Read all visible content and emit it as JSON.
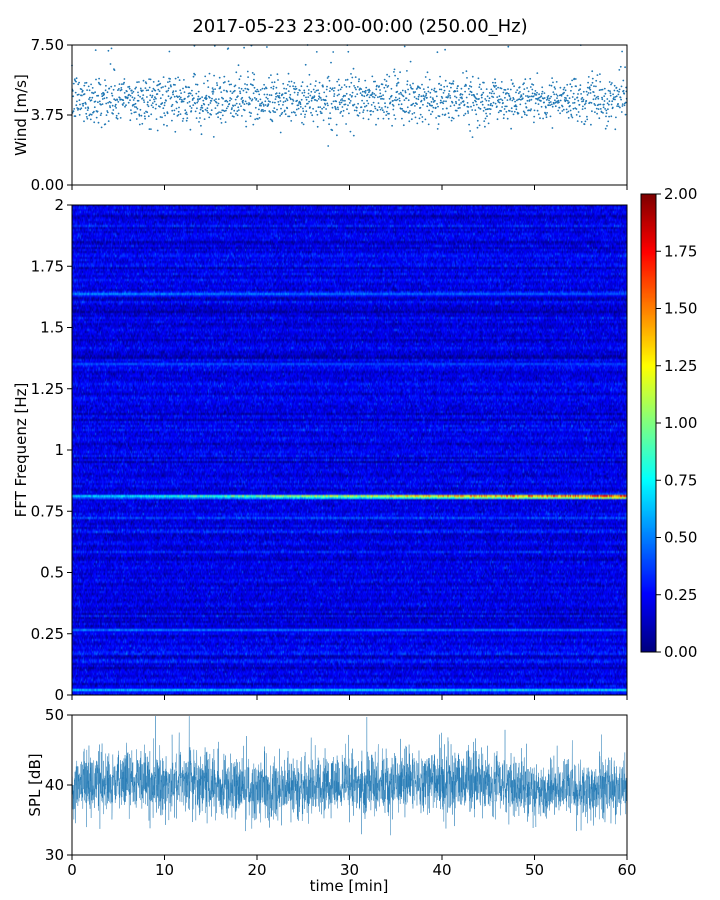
{
  "title": "2017-05-23 23:00-00:00 (250.00_Hz)",
  "colors": {
    "scatter": "#1f77b4",
    "spl_line": "#1f77b4",
    "axes": "#000000"
  },
  "chart_data": [
    {
      "type": "scatter",
      "name": "wind",
      "ylabel": "Wind [m/s]",
      "xlim": [
        0,
        60
      ],
      "ylim": [
        0,
        7.5
      ],
      "yticks": [
        "0.00",
        "3.75",
        "7.50"
      ],
      "xticks": [
        0,
        10,
        20,
        30,
        40,
        50,
        60
      ],
      "x_tick_labels_shown": false,
      "mean": 4.6,
      "typical_range": [
        3.0,
        6.0
      ],
      "max": 7.5,
      "min": 1.7,
      "marker_color": "#1f77b4"
    },
    {
      "type": "heatmap",
      "name": "spectrogram",
      "ylabel": "FFT Frequenz [Hz]",
      "xlim": [
        0,
        60
      ],
      "ylim": [
        0,
        2
      ],
      "yticks": [
        "0",
        "0.25",
        "0.5",
        "0.75",
        "1",
        "1.25",
        "1.5",
        "1.75",
        "2"
      ],
      "colormap": "jet",
      "colorbar": {
        "vmin": 0,
        "vmax": 2,
        "ticks": [
          "0.00",
          "0.25",
          "0.50",
          "0.75",
          "1.00",
          "1.25",
          "1.50",
          "1.75",
          "2.00"
        ]
      },
      "background_level": 0.2,
      "tonal_lines": [
        {
          "freq_hz": 0.81,
          "intensity_start": 0.7,
          "intensity_end": 1.9
        },
        {
          "freq_hz": 0.265,
          "intensity_start": 0.55,
          "intensity_end": 0.5
        },
        {
          "freq_hz": 1.635,
          "intensity_start": 0.6,
          "intensity_end": 0.45
        },
        {
          "freq_hz": 0.02,
          "intensity_start": 0.7,
          "intensity_end": 0.8
        },
        {
          "freq_hz": 1.35,
          "intensity_start": 0.45,
          "intensity_end": 0.4
        }
      ]
    },
    {
      "type": "line",
      "name": "spl",
      "ylabel": "SPL [dB]",
      "xlabel": "time [min]",
      "xlim": [
        0,
        60
      ],
      "ylim": [
        30,
        50
      ],
      "yticks": [
        "30",
        "40",
        "50"
      ],
      "xticks": [
        "0",
        "10",
        "20",
        "30",
        "40",
        "50",
        "60"
      ],
      "mean": 40,
      "typical_range": [
        36,
        44
      ],
      "max": 50,
      "min": 32,
      "line_color": "#1f77b4"
    }
  ]
}
